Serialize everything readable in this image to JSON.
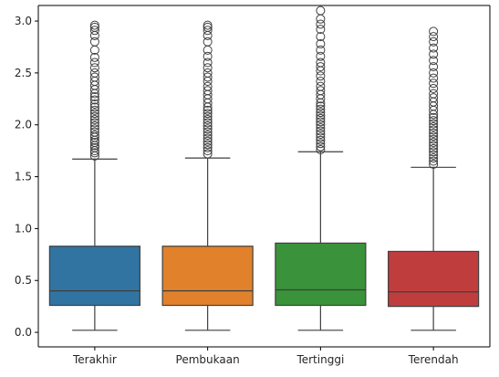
{
  "chart_data": {
    "type": "box",
    "title": "",
    "xlabel": "",
    "ylabel": "",
    "ylim": [
      -0.14,
      3.15
    ],
    "yticks": [
      0.0,
      0.5,
      1.0,
      1.5,
      2.0,
      2.5,
      3.0
    ],
    "yticklabels": [
      "0.0",
      "0.5",
      "1.0",
      "1.5",
      "2.0",
      "2.5",
      "3.0"
    ],
    "grid": false,
    "categories": [
      "Terakhir",
      "Pembukaan",
      "Tertinggi",
      "Terendah"
    ],
    "boxes": [
      {
        "label": "Terakhir",
        "color": "#3274a1",
        "whisker_low": 0.02,
        "q1": 0.26,
        "median": 0.4,
        "q3": 0.83,
        "whisker_high": 1.67,
        "outliers": [
          1.7,
          1.73,
          1.75,
          1.78,
          1.8,
          1.83,
          1.85,
          1.88,
          1.9,
          1.93,
          1.96,
          1.99,
          2.02,
          2.05,
          2.08,
          2.11,
          2.14,
          2.17,
          2.2,
          2.24,
          2.27,
          2.3,
          2.34,
          2.38,
          2.42,
          2.46,
          2.5,
          2.55,
          2.6,
          2.65,
          2.72,
          2.8,
          2.86,
          2.91,
          2.94,
          2.96
        ]
      },
      {
        "label": "Pembukaan",
        "color": "#e1812c",
        "whisker_low": 0.02,
        "q1": 0.26,
        "median": 0.4,
        "q3": 0.83,
        "whisker_high": 1.68,
        "outliers": [
          1.72,
          1.75,
          1.78,
          1.81,
          1.84,
          1.87,
          1.9,
          1.93,
          1.96,
          1.99,
          2.02,
          2.05,
          2.08,
          2.11,
          2.14,
          2.17,
          2.21,
          2.25,
          2.29,
          2.33,
          2.37,
          2.42,
          2.46,
          2.5,
          2.55,
          2.6,
          2.66,
          2.72,
          2.8,
          2.86,
          2.91,
          2.94,
          2.96
        ]
      },
      {
        "label": "Tertinggi",
        "color": "#3a923a",
        "whisker_low": 0.02,
        "q1": 0.26,
        "median": 0.41,
        "q3": 0.86,
        "whisker_high": 1.74,
        "outliers": [
          1.76,
          1.79,
          1.82,
          1.85,
          1.88,
          1.91,
          1.94,
          1.97,
          2.0,
          2.03,
          2.06,
          2.09,
          2.12,
          2.15,
          2.18,
          2.21,
          2.25,
          2.29,
          2.33,
          2.37,
          2.42,
          2.47,
          2.52,
          2.56,
          2.6,
          2.66,
          2.72,
          2.78,
          2.85,
          2.92,
          2.97,
          3.02,
          3.1
        ]
      },
      {
        "label": "Terendah",
        "color": "#c03d3e",
        "whisker_low": 0.02,
        "q1": 0.25,
        "median": 0.39,
        "q3": 0.78,
        "whisker_high": 1.59,
        "outliers": [
          1.62,
          1.65,
          1.68,
          1.71,
          1.74,
          1.77,
          1.8,
          1.83,
          1.86,
          1.89,
          1.92,
          1.95,
          1.98,
          2.01,
          2.04,
          2.07,
          2.1,
          2.14,
          2.18,
          2.22,
          2.26,
          2.3,
          2.35,
          2.4,
          2.45,
          2.5,
          2.56,
          2.62,
          2.68,
          2.74,
          2.8,
          2.85,
          2.9
        ]
      }
    ]
  }
}
